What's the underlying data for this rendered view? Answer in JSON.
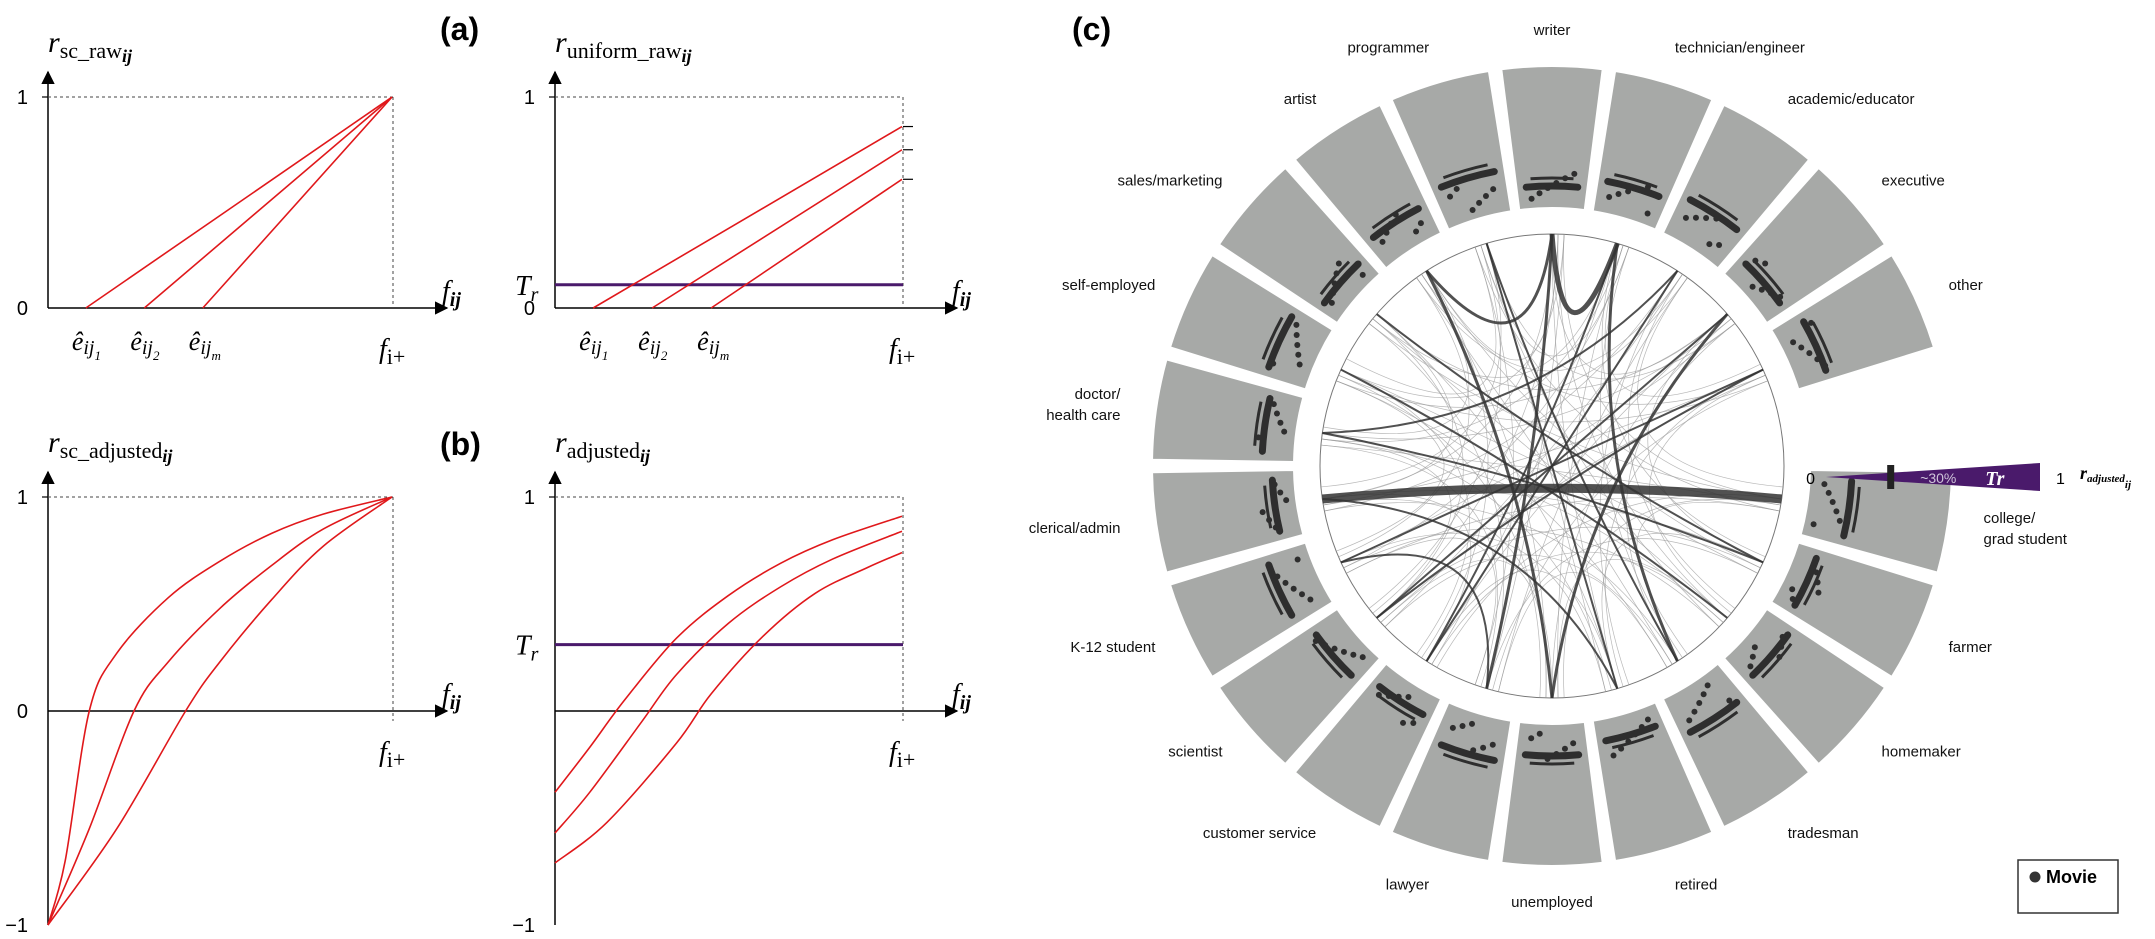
{
  "chart_data": [
    {
      "id": "a_left",
      "panel_label": "(a)",
      "type": "line",
      "title": "",
      "ylabel_main": "r",
      "ylabel_sub": "sc_raw",
      "ylabel_ij": "ij",
      "xlabel_main": "f",
      "xlabel_ij": "ij",
      "yticks": [
        {
          "value": 1,
          "label": "1"
        },
        {
          "value": 0,
          "label": "0"
        }
      ],
      "ylim": [
        0,
        1
      ],
      "xlim": [
        0,
        1
      ],
      "x_end_label": "f",
      "x_end_sub": "i+",
      "e_labels": [
        {
          "x": 0.11,
          "sub": "1"
        },
        {
          "x": 0.28,
          "sub": "2"
        },
        {
          "x": 0.45,
          "sub": "m"
        }
      ],
      "series": [
        {
          "name": "ê_ij1",
          "points": [
            [
              0.11,
              0
            ],
            [
              1,
              1
            ]
          ]
        },
        {
          "name": "ê_ij2",
          "points": [
            [
              0.28,
              0
            ],
            [
              1,
              1
            ]
          ]
        },
        {
          "name": "ê_ijm",
          "points": [
            [
              0.45,
              0
            ],
            [
              1,
              1
            ]
          ]
        }
      ],
      "threshold": null
    },
    {
      "id": "a_right",
      "type": "line",
      "title": "",
      "ylabel_main": "r",
      "ylabel_sub": "uniform_raw",
      "ylabel_ij": "ij",
      "xlabel_main": "f",
      "xlabel_ij": "ij",
      "yticks": [
        {
          "value": 1,
          "label": "1"
        },
        {
          "value": 0,
          "label": "0"
        }
      ],
      "ylim": [
        0,
        1
      ],
      "xlim": [
        0,
        1
      ],
      "x_end_label": "f",
      "x_end_sub": "i+",
      "e_labels": [
        {
          "x": 0.11,
          "sub": "1"
        },
        {
          "x": 0.28,
          "sub": "2"
        },
        {
          "x": 0.45,
          "sub": "m"
        }
      ],
      "series": [
        {
          "name": "ê_ij1",
          "points": [
            [
              0.11,
              0
            ],
            [
              1,
              0.86
            ]
          ]
        },
        {
          "name": "ê_ij2",
          "points": [
            [
              0.28,
              0
            ],
            [
              1,
              0.75
            ]
          ]
        },
        {
          "name": "ê_ijm",
          "points": [
            [
              0.45,
              0
            ],
            [
              1,
              0.61
            ]
          ]
        }
      ],
      "threshold": {
        "label": "T",
        "sub": "r",
        "value": 0.11
      }
    },
    {
      "id": "b_left",
      "panel_label": "(b)",
      "type": "line",
      "title": "",
      "ylabel_main": "r",
      "ylabel_sub": "sc_adjusted",
      "ylabel_ij": "ij",
      "xlabel_main": "f",
      "xlabel_ij": "ij",
      "yticks": [
        {
          "value": 1,
          "label": "1"
        },
        {
          "value": 0,
          "label": "0"
        },
        {
          "value": -1,
          "label": "−1"
        }
      ],
      "ylim": [
        -1,
        1
      ],
      "xlim": [
        0,
        1
      ],
      "x_end_label": "f",
      "x_end_sub": "i+",
      "e_labels": [],
      "series": [
        {
          "name": "curve 1",
          "points": [
            [
              0,
              -1
            ],
            [
              0.05,
              -0.7
            ],
            [
              0.12,
              0
            ],
            [
              0.2,
              0.27
            ],
            [
              0.35,
              0.53
            ],
            [
              0.5,
              0.7
            ],
            [
              0.65,
              0.83
            ],
            [
              0.8,
              0.92
            ],
            [
              1,
              1
            ]
          ]
        },
        {
          "name": "curve 2",
          "points": [
            [
              0,
              -1
            ],
            [
              0.12,
              -0.55
            ],
            [
              0.25,
              0
            ],
            [
              0.35,
              0.23
            ],
            [
              0.5,
              0.48
            ],
            [
              0.65,
              0.68
            ],
            [
              0.8,
              0.85
            ],
            [
              1,
              1
            ]
          ]
        },
        {
          "name": "curve 3",
          "points": [
            [
              0,
              -1
            ],
            [
              0.2,
              -0.55
            ],
            [
              0.4,
              0
            ],
            [
              0.5,
              0.23
            ],
            [
              0.65,
              0.52
            ],
            [
              0.8,
              0.77
            ],
            [
              1,
              1
            ]
          ]
        }
      ],
      "threshold": null
    },
    {
      "id": "b_right",
      "type": "line",
      "title": "",
      "ylabel_main": "r",
      "ylabel_sub": "adjusted",
      "ylabel_ij": "ij",
      "xlabel_main": "f",
      "xlabel_ij": "ij",
      "yticks": [
        {
          "value": 1,
          "label": "1"
        },
        {
          "value": -1,
          "label": "−1"
        }
      ],
      "ylim": [
        -1,
        1
      ],
      "xlim": [
        0,
        1
      ],
      "x_end_label": "f",
      "x_end_sub": "i+",
      "e_labels": [],
      "series": [
        {
          "name": "curve 1",
          "points": [
            [
              0,
              -0.38
            ],
            [
              0.1,
              -0.17
            ],
            [
              0.2,
              0.05
            ],
            [
              0.35,
              0.34
            ],
            [
              0.5,
              0.54
            ],
            [
              0.65,
              0.69
            ],
            [
              0.8,
              0.8
            ],
            [
              1,
              0.91
            ]
          ]
        },
        {
          "name": "curve 2",
          "points": [
            [
              0,
              -0.57
            ],
            [
              0.1,
              -0.38
            ],
            [
              0.25,
              -0.05
            ],
            [
              0.35,
              0.17
            ],
            [
              0.5,
              0.41
            ],
            [
              0.65,
              0.58
            ],
            [
              0.8,
              0.71
            ],
            [
              1,
              0.84
            ]
          ]
        },
        {
          "name": "curve 3",
          "points": [
            [
              0,
              -0.71
            ],
            [
              0.15,
              -0.52
            ],
            [
              0.35,
              -0.15
            ],
            [
              0.45,
              0.08
            ],
            [
              0.6,
              0.35
            ],
            [
              0.75,
              0.55
            ],
            [
              0.9,
              0.67
            ],
            [
              1,
              0.74
            ]
          ]
        }
      ],
      "threshold": {
        "label": "T",
        "sub": "r",
        "value": 0.31
      }
    },
    {
      "id": "c",
      "panel_label": "(c)",
      "type": "radial",
      "categories": [
        "writer",
        "technician/engineer",
        "academic/educator",
        "executive",
        "other",
        "college/\ngrad student",
        "farmer",
        "homemaker",
        "tradesman",
        "retired",
        "unemployed",
        "lawyer",
        "customer service",
        "scientist",
        "K-12 student",
        "clerical/admin",
        "doctor/\nhealth care",
        "self-employed",
        "sales/marketing",
        "artist",
        "programmer"
      ],
      "legend": "Movie",
      "scale": {
        "min_label": "0",
        "max_label": "1",
        "percent_label": "~30%",
        "threshold_label": "Tr",
        "axis_label_main": "r",
        "axis_label_sub": "adjusted",
        "axis_label_ij": "ij",
        "threshold_value": 0.3
      },
      "chords": [
        {
          "from": 0,
          "to": 1,
          "weight": 5
        },
        {
          "from": 5,
          "to": 15,
          "weight": 9
        },
        {
          "from": 0,
          "to": 19,
          "weight": 3
        },
        {
          "from": 0,
          "to": 11,
          "weight": 3
        },
        {
          "from": 1,
          "to": 8,
          "weight": 3
        },
        {
          "from": 1,
          "to": 12,
          "weight": 2
        },
        {
          "from": 3,
          "to": 10,
          "weight": 3
        },
        {
          "from": 3,
          "to": 13,
          "weight": 2
        },
        {
          "from": 4,
          "to": 14,
          "weight": 2
        },
        {
          "from": 2,
          "to": 16,
          "weight": 2
        },
        {
          "from": 6,
          "to": 18,
          "weight": 2
        },
        {
          "from": 7,
          "to": 17,
          "weight": 2
        },
        {
          "from": 8,
          "to": 20,
          "weight": 2
        },
        {
          "from": 9,
          "to": 15,
          "weight": 2
        },
        {
          "from": 10,
          "to": 19,
          "weight": 3
        },
        {
          "from": 11,
          "to": 14,
          "weight": 2
        },
        {
          "from": 12,
          "to": 2,
          "weight": 2
        },
        {
          "from": 13,
          "to": 4,
          "weight": 2
        },
        {
          "from": 9,
          "to": 20,
          "weight": 2
        },
        {
          "from": 16,
          "to": 6,
          "weight": 2
        }
      ]
    }
  ]
}
